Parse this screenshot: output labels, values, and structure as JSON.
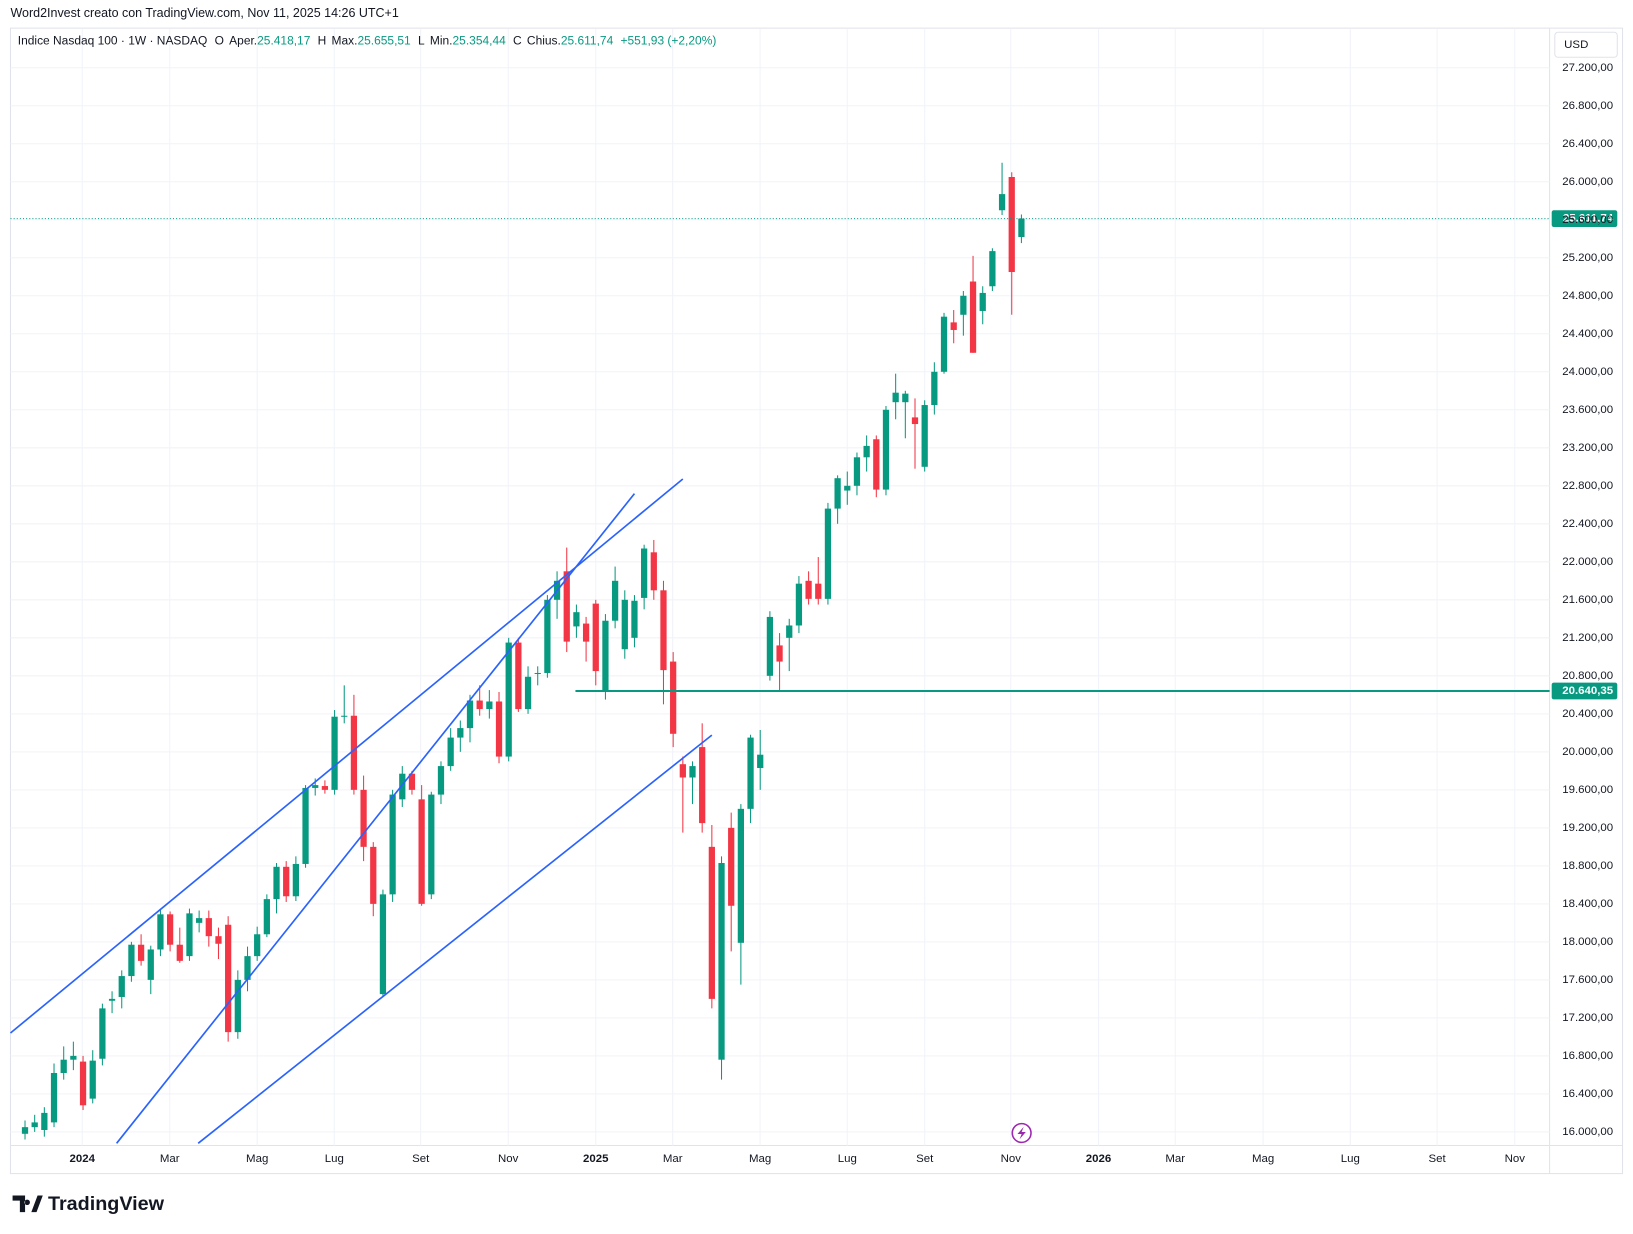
{
  "header": "Word2Invest creato con TradingView.com, Nov 11, 2025 14:26 UTC+1",
  "brand": "TradingView",
  "chart_data": {
    "type": "candlestick",
    "currency": "USD",
    "legend": {
      "symbol": "Indice Nasdaq 100 · 1W · NASDAQ",
      "fields": [
        {
          "key": "O",
          "name": "Aper.",
          "value": "25.418,17"
        },
        {
          "key": "H",
          "name": "Max.",
          "value": "25.655,51"
        },
        {
          "key": "L",
          "name": "Min.",
          "value": "25.354,44"
        },
        {
          "key": "C",
          "name": "Chius.",
          "value": "25.611,74"
        }
      ],
      "change": "+551,93 (+2,20%)"
    },
    "up_color": "#089981",
    "down_color": "#f23645",
    "candles": [
      [
        15980,
        16120,
        15920,
        16050
      ],
      [
        16050,
        16180,
        16000,
        16100
      ],
      [
        16020,
        16260,
        15950,
        16200
      ],
      [
        16100,
        16720,
        16050,
        16620
      ],
      [
        16620,
        16900,
        16550,
        16760
      ],
      [
        16760,
        16950,
        16650,
        16800
      ],
      [
        16740,
        16800,
        16230,
        16280
      ],
      [
        16350,
        16860,
        16300,
        16750
      ],
      [
        16770,
        17350,
        16700,
        17300
      ],
      [
        17380,
        17480,
        17250,
        17400
      ],
      [
        17420,
        17700,
        17300,
        17640
      ],
      [
        17640,
        18000,
        17580,
        17970
      ],
      [
        17970,
        18080,
        17750,
        17800
      ],
      [
        17600,
        17960,
        17450,
        17920
      ],
      [
        17920,
        18350,
        17850,
        18290
      ],
      [
        18290,
        18320,
        17900,
        17970
      ],
      [
        17970,
        18150,
        17780,
        17800
      ],
      [
        17850,
        18350,
        17800,
        18300
      ],
      [
        18200,
        18330,
        18100,
        18250
      ],
      [
        18250,
        18330,
        17950,
        18060
      ],
      [
        18060,
        18150,
        17820,
        17980
      ],
      [
        18180,
        18270,
        16950,
        17050
      ],
      [
        17050,
        17700,
        16980,
        17600
      ],
      [
        17600,
        17950,
        17480,
        17850
      ],
      [
        17850,
        18160,
        17800,
        18080
      ],
      [
        18080,
        18500,
        18050,
        18450
      ],
      [
        18450,
        18830,
        18300,
        18790
      ],
      [
        18790,
        18850,
        18420,
        18480
      ],
      [
        18480,
        18900,
        18430,
        18820
      ],
      [
        18820,
        19650,
        18780,
        19620
      ],
      [
        19620,
        19720,
        19540,
        19650
      ],
      [
        19640,
        19700,
        19560,
        19600
      ],
      [
        19600,
        20440,
        19550,
        20370
      ],
      [
        20370,
        20700,
        20300,
        20380
      ],
      [
        20380,
        20600,
        19550,
        19600
      ],
      [
        19600,
        19750,
        18850,
        19000
      ],
      [
        19000,
        19050,
        18270,
        18400
      ],
      [
        17450,
        18550,
        17420,
        18500
      ],
      [
        18500,
        19600,
        18420,
        19550
      ],
      [
        19500,
        19850,
        19420,
        19770
      ],
      [
        19770,
        19800,
        19550,
        19600
      ],
      [
        19500,
        19650,
        18380,
        18400
      ],
      [
        18500,
        19580,
        18450,
        19550
      ],
      [
        19550,
        19900,
        19450,
        19850
      ],
      [
        19850,
        20250,
        19800,
        20150
      ],
      [
        20150,
        20330,
        20000,
        20250
      ],
      [
        20250,
        20600,
        20100,
        20540
      ],
      [
        20540,
        20700,
        20380,
        20450
      ],
      [
        20450,
        20650,
        20350,
        20530
      ],
      [
        20530,
        20630,
        19880,
        19950
      ],
      [
        19950,
        21200,
        19900,
        21150
      ],
      [
        21150,
        21200,
        20420,
        20450
      ],
      [
        20450,
        20900,
        20400,
        20790
      ],
      [
        20820,
        20900,
        20700,
        20830
      ],
      [
        20830,
        21650,
        20780,
        21600
      ],
      [
        21600,
        21900,
        21400,
        21800
      ],
      [
        21900,
        22150,
        21050,
        21160
      ],
      [
        21320,
        21550,
        21200,
        21470
      ],
      [
        21350,
        21420,
        20950,
        21160
      ],
      [
        21560,
        21600,
        20700,
        20850
      ],
      [
        20630,
        21450,
        20550,
        21380
      ],
      [
        21380,
        21950,
        21300,
        21800
      ],
      [
        21080,
        21700,
        20980,
        21600
      ],
      [
        21200,
        21650,
        21100,
        21590
      ],
      [
        21620,
        22180,
        21500,
        22140
      ],
      [
        22100,
        22230,
        21600,
        21700
      ],
      [
        21700,
        21800,
        20500,
        20860
      ],
      [
        20950,
        21050,
        20050,
        20190
      ],
      [
        19870,
        19950,
        19150,
        19730
      ],
      [
        19730,
        19900,
        19450,
        19850
      ],
      [
        20050,
        20300,
        19150,
        19250
      ],
      [
        19000,
        19230,
        17300,
        17400
      ],
      [
        16760,
        18900,
        16550,
        18830
      ],
      [
        19200,
        19360,
        17900,
        18380
      ],
      [
        17990,
        19450,
        17550,
        19400
      ],
      [
        19400,
        20180,
        19250,
        20150
      ],
      [
        19830,
        20230,
        19600,
        19970
      ],
      [
        20800,
        21480,
        20750,
        21420
      ],
      [
        21120,
        21250,
        20650,
        20950
      ],
      [
        21200,
        21400,
        20850,
        21330
      ],
      [
        21330,
        21850,
        21250,
        21770
      ],
      [
        21800,
        21900,
        21550,
        21610
      ],
      [
        21770,
        22050,
        21550,
        21610
      ],
      [
        21610,
        22620,
        21550,
        22560
      ],
      [
        22560,
        22910,
        22400,
        22880
      ],
      [
        22750,
        22950,
        22600,
        22800
      ],
      [
        22800,
        23150,
        22700,
        23100
      ],
      [
        23100,
        23330,
        22950,
        23220
      ],
      [
        23290,
        23330,
        22680,
        22760
      ],
      [
        22760,
        23640,
        22700,
        23600
      ],
      [
        23680,
        23980,
        23500,
        23780
      ],
      [
        23680,
        23800,
        23300,
        23770
      ],
      [
        23520,
        23720,
        22980,
        23450
      ],
      [
        23000,
        23700,
        22950,
        23650
      ],
      [
        23650,
        24100,
        23550,
        24000
      ],
      [
        24000,
        24620,
        23980,
        24580
      ],
      [
        24520,
        24650,
        24300,
        24440
      ],
      [
        24600,
        24850,
        24380,
        24800
      ],
      [
        24950,
        25220,
        24200,
        24200
      ],
      [
        24640,
        24900,
        24500,
        24830
      ],
      [
        24900,
        25300,
        24850,
        25270
      ],
      [
        25700,
        26200,
        25650,
        25870
      ],
      [
        26050,
        26100,
        24600,
        25050
      ],
      [
        25418.17,
        25655.51,
        25354.44,
        25611.74
      ]
    ],
    "xlim": [
      -1.5,
      157.6
    ],
    "xticks": [
      {
        "value": 5.92,
        "label": "2024"
      },
      {
        "value": 14.96,
        "label": "Mar"
      },
      {
        "value": 24.0,
        "label": "Mag"
      },
      {
        "value": 31.97,
        "label": "Lug"
      },
      {
        "value": 40.9,
        "label": "Set"
      },
      {
        "value": 49.95,
        "label": "Nov"
      },
      {
        "value": 59.0,
        "label": "2025"
      },
      {
        "value": 66.95,
        "label": "Mar"
      },
      {
        "value": 75.99,
        "label": "Mag"
      },
      {
        "value": 85.0,
        "label": "Lug"
      },
      {
        "value": 93.0,
        "label": "Set"
      },
      {
        "value": 101.9,
        "label": "Nov"
      },
      {
        "value": 110.97,
        "label": "2026"
      },
      {
        "value": 118.9,
        "label": "Mar"
      },
      {
        "value": 127.98,
        "label": "Mag"
      },
      {
        "value": 137.0,
        "label": "Lug"
      },
      {
        "value": 145.97,
        "label": "Set"
      },
      {
        "value": 154.0,
        "label": "Nov"
      }
    ],
    "ylim": [
      15857,
      27606
    ],
    "yticks": [
      {
        "value": 16000,
        "label": "16.000,00"
      },
      {
        "value": 16400,
        "label": "16.400,00"
      },
      {
        "value": 16800,
        "label": "16.800,00"
      },
      {
        "value": 17200,
        "label": "17.200,00"
      },
      {
        "value": 17600,
        "label": "17.600,00"
      },
      {
        "value": 18000,
        "label": "18.000,00"
      },
      {
        "value": 18400,
        "label": "18.400,00"
      },
      {
        "value": 18800,
        "label": "18.800,00"
      },
      {
        "value": 19200,
        "label": "19.200,00"
      },
      {
        "value": 19600,
        "label": "19.600,00"
      },
      {
        "value": 20000,
        "label": "20.000,00"
      },
      {
        "value": 20400,
        "label": "20.400,00"
      },
      {
        "value": 20800,
        "label": "20.800,00"
      },
      {
        "value": 21200,
        "label": "21.200,00"
      },
      {
        "value": 21600,
        "label": "21.600,00"
      },
      {
        "value": 22000,
        "label": "22.000,00"
      },
      {
        "value": 22400,
        "label": "22.400,00"
      },
      {
        "value": 22800,
        "label": "22.800,00"
      },
      {
        "value": 23200,
        "label": "23.200,00"
      },
      {
        "value": 23600,
        "label": "23.600,00"
      },
      {
        "value": 24000,
        "label": "24.000,00"
      },
      {
        "value": 24400,
        "label": "24.400,00"
      },
      {
        "value": 24800,
        "label": "24.800,00"
      },
      {
        "value": 25200,
        "label": "25.200,00"
      },
      {
        "value": 25600,
        "label": "25.600,00"
      },
      {
        "value": 26000,
        "label": "26.000,00"
      },
      {
        "value": 26400,
        "label": "26.400,00"
      },
      {
        "value": 26800,
        "label": "26.800,00"
      },
      {
        "value": 27200,
        "label": "27.200,00"
      }
    ],
    "grid": true,
    "last_price": {
      "value": 25611.74,
      "label": "25.611,74",
      "color": "#089981"
    },
    "horizontal_line": {
      "start": 56.9,
      "value": 20640.35,
      "label": "20.640,35",
      "color": "#089981"
    },
    "trend_lines": {
      "color": "#2962ff",
      "lines": [
        [
          [
            -1.5,
            17041
          ],
          [
            68.0,
            22872
          ]
        ],
        [
          [
            9.47,
            15880
          ],
          [
            63.0,
            22718
          ]
        ],
        [
          [
            17.9,
            15880
          ],
          [
            71.0,
            20176
          ]
        ]
      ]
    }
  }
}
